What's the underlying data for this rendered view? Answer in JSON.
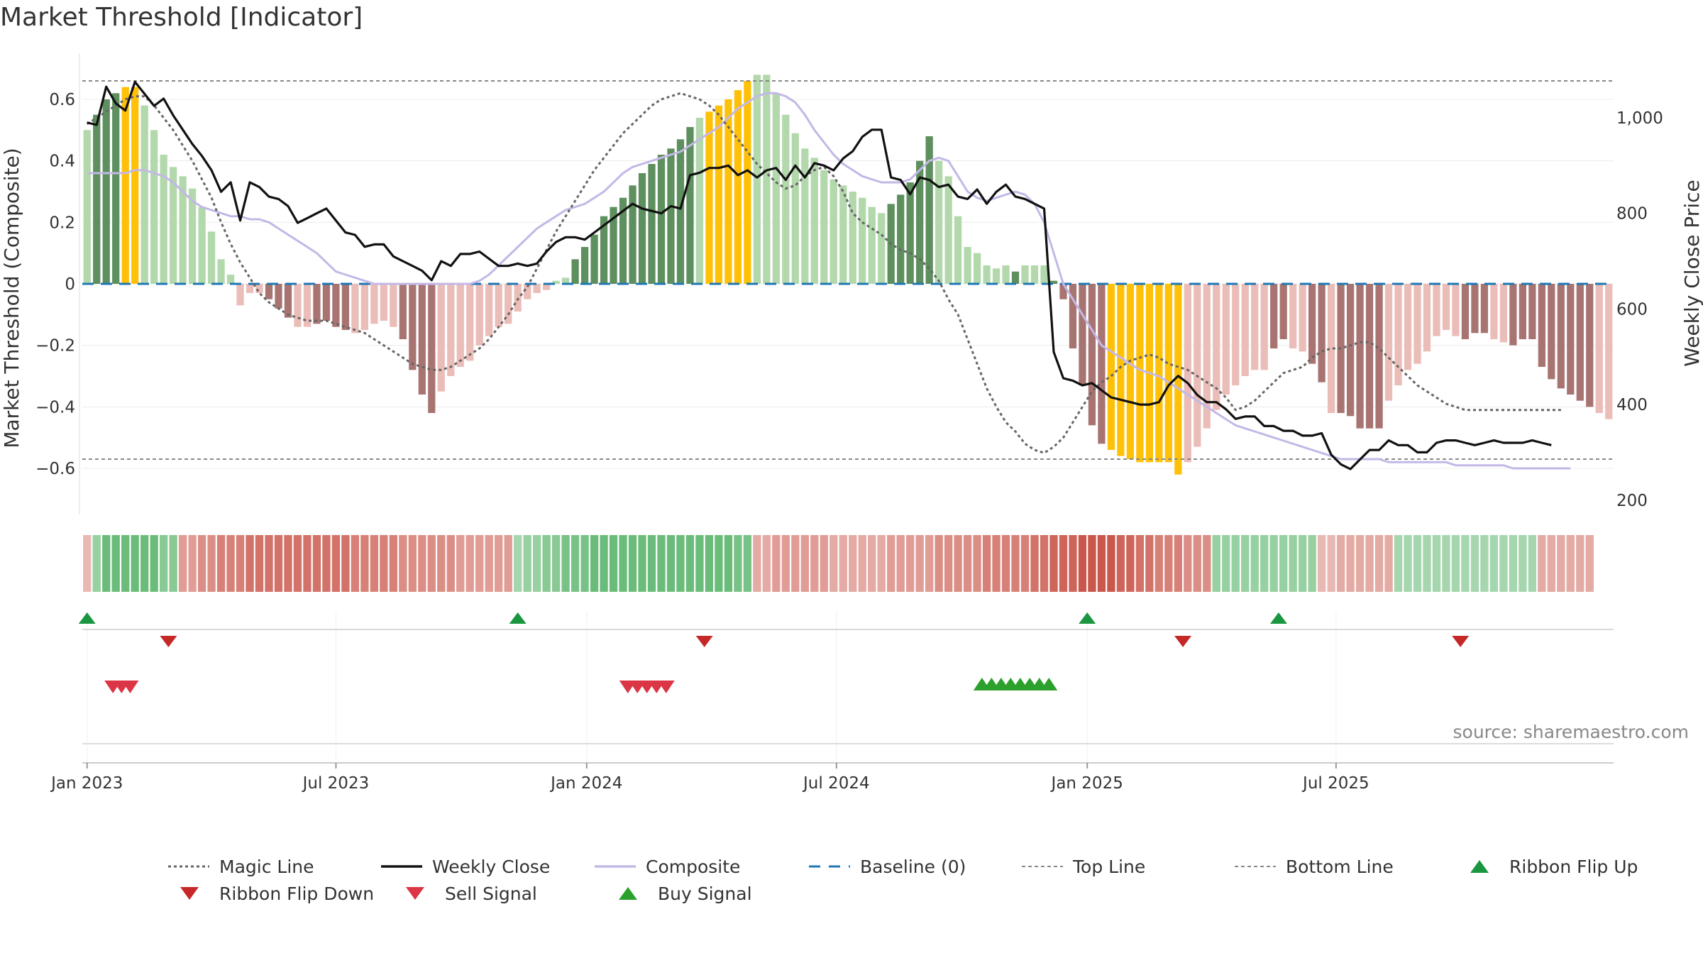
{
  "page": {
    "title": "Market Threshold [Indicator]"
  },
  "source": "source: sharemaestro.com",
  "colors": {
    "bull_dark": "#5e8f5e",
    "bull_light": "#b2d8ac",
    "bear_dark": "#a87472",
    "bear_light": "#ebbdb8",
    "extreme": "#ffc107",
    "close": "#111111",
    "composite": "#c3b8e6",
    "magic": "#666666",
    "baseline": "#1f77b4",
    "ribbon_up": "#1a9641",
    "sell": "#dc3545",
    "buy": "#2ca02c"
  },
  "chart_data": {
    "type": "bar",
    "title": "Market Threshold [Indicator]",
    "start_week": "2022-12-26",
    "left_axis": {
      "label": "Market Threshold (Composite)",
      "ylim": [
        -0.75,
        0.75
      ],
      "ticks": [
        0.6,
        0.4,
        0.2,
        0,
        -0.2,
        -0.4,
        -0.6
      ],
      "tick_labels": [
        "0.6",
        "0.4",
        "0.2",
        "0",
        "−0.2",
        "−0.4",
        "−0.6"
      ]
    },
    "right_axis": {
      "label": "Weekly Close Price",
      "ylim": [
        170,
        1135
      ],
      "ticks": [
        1000,
        800,
        600,
        400,
        200
      ],
      "tick_labels": [
        "1,000",
        "800",
        "600",
        "400",
        "200"
      ]
    },
    "x_ticks": [
      {
        "label": "Jan 2023",
        "week": 0.5
      },
      {
        "label": "Jul 2023",
        "week": 26.5
      },
      {
        "label": "Jan 2024",
        "week": 52.7
      },
      {
        "label": "Jul 2024",
        "week": 78.8
      },
      {
        "label": "Jan 2025",
        "week": 105
      },
      {
        "label": "Jul 2025",
        "week": 131
      }
    ],
    "top_line": 0.66,
    "bottom_line": -0.57,
    "baseline": 0,
    "histogram": [
      0.5,
      0.55,
      0.6,
      0.62,
      0.64,
      0.64,
      0.58,
      0.5,
      0.42,
      0.38,
      0.35,
      0.31,
      0.25,
      0.17,
      0.08,
      0.03,
      -0.07,
      -0.03,
      -0.03,
      -0.05,
      -0.08,
      -0.11,
      -0.14,
      -0.14,
      -0.13,
      -0.12,
      -0.14,
      -0.15,
      -0.16,
      -0.15,
      -0.13,
      -0.12,
      -0.14,
      -0.18,
      -0.28,
      -0.36,
      -0.42,
      -0.35,
      -0.3,
      -0.27,
      -0.25,
      -0.2,
      -0.17,
      -0.14,
      -0.13,
      -0.09,
      -0.05,
      -0.03,
      -0.02,
      0.01,
      0.02,
      0.08,
      0.12,
      0.16,
      0.22,
      0.25,
      0.28,
      0.32,
      0.36,
      0.39,
      0.42,
      0.44,
      0.47,
      0.51,
      0.54,
      0.56,
      0.58,
      0.6,
      0.63,
      0.66,
      0.68,
      0.68,
      0.62,
      0.55,
      0.49,
      0.44,
      0.41,
      0.37,
      0.34,
      0.32,
      0.3,
      0.28,
      0.25,
      0.23,
      0.26,
      0.29,
      0.33,
      0.4,
      0.48,
      0.4,
      0.35,
      0.22,
      0.12,
      0.1,
      0.06,
      0.05,
      0.06,
      0.04,
      0.06,
      0.06,
      0.06,
      0.01,
      -0.05,
      -0.21,
      -0.33,
      -0.46,
      -0.52,
      -0.54,
      -0.56,
      -0.57,
      -0.58,
      -0.58,
      -0.58,
      -0.58,
      -0.62,
      -0.58,
      -0.53,
      -0.47,
      -0.41,
      -0.36,
      -0.33,
      -0.3,
      -0.28,
      -0.28,
      -0.21,
      -0.18,
      -0.21,
      -0.22,
      -0.26,
      -0.32,
      -0.42,
      -0.42,
      -0.43,
      -0.47,
      -0.47,
      -0.47,
      -0.38,
      -0.33,
      -0.28,
      -0.26,
      -0.22,
      -0.17,
      -0.15,
      -0.17,
      -0.18,
      -0.16,
      -0.16,
      -0.18,
      -0.19,
      -0.2,
      -0.18,
      -0.18,
      -0.27,
      -0.31,
      -0.34,
      -0.36,
      -0.38,
      -0.4,
      -0.42,
      -0.44
    ],
    "histogram_style": [
      "L",
      "D",
      "D",
      "D",
      "Y",
      "Y",
      "L",
      "L",
      "L",
      "L",
      "L",
      "L",
      "L",
      "L",
      "L",
      "L",
      "L",
      "L",
      "L",
      "D",
      "D",
      "D",
      "L",
      "L",
      "D",
      "D",
      "D",
      "D",
      "L",
      "L",
      "L",
      "L",
      "L",
      "D",
      "D",
      "D",
      "D",
      "L",
      "L",
      "L",
      "L",
      "L",
      "L",
      "L",
      "L",
      "L",
      "L",
      "L",
      "L",
      "L",
      "L",
      "D",
      "D",
      "D",
      "D",
      "D",
      "D",
      "D",
      "D",
      "D",
      "D",
      "D",
      "D",
      "D",
      "L",
      "Y",
      "Y",
      "Y",
      "Y",
      "Y",
      "L",
      "L",
      "L",
      "L",
      "L",
      "L",
      "L",
      "L",
      "L",
      "L",
      "L",
      "L",
      "L",
      "L",
      "D",
      "D",
      "D",
      "D",
      "D",
      "L",
      "L",
      "L",
      "L",
      "L",
      "L",
      "L",
      "L",
      "D",
      "L",
      "L",
      "L",
      "D",
      "D",
      "D",
      "D",
      "D",
      "D",
      "Y",
      "Y",
      "Y",
      "Y",
      "Y",
      "Y",
      "Y",
      "Y",
      "L",
      "L",
      "L",
      "L",
      "L",
      "L",
      "L",
      "L",
      "L",
      "D",
      "D",
      "L",
      "L",
      "D",
      "D",
      "L",
      "D",
      "D",
      "D",
      "D",
      "D",
      "L",
      "L",
      "L",
      "L",
      "L",
      "L",
      "L",
      "L",
      "D",
      "D",
      "D",
      "L",
      "L",
      "D",
      "D",
      "D",
      "D",
      "D",
      "D",
      "D",
      "D",
      "D"
    ],
    "series": [
      {
        "name": "Weekly Close",
        "axis": "right",
        "values": [
          990,
          985,
          1065,
          1030,
          1015,
          1075,
          1050,
          1025,
          1040,
          1005,
          975,
          945,
          920,
          890,
          845,
          865,
          785,
          865,
          855,
          835,
          830,
          815,
          780,
          790,
          800,
          810,
          785,
          760,
          755,
          730,
          735,
          735,
          710,
          700,
          690,
          680,
          660,
          700,
          690,
          715,
          715,
          720,
          705,
          690,
          690,
          695,
          690,
          695,
          720,
          740,
          750,
          750,
          745,
          760,
          775,
          790,
          805,
          820,
          810,
          805,
          800,
          815,
          810,
          880,
          885,
          895,
          895,
          900,
          880,
          890,
          875,
          890,
          895,
          870,
          900,
          875,
          905,
          900,
          890,
          915,
          930,
          960,
          975,
          975,
          875,
          870,
          840,
          875,
          870,
          855,
          860,
          835,
          830,
          850,
          820,
          845,
          860,
          835,
          830,
          820,
          810,
          510,
          455,
          450,
          440,
          445,
          430,
          415,
          410,
          405,
          400,
          400,
          405,
          440,
          460,
          445,
          420,
          405,
          405,
          390,
          370,
          375,
          375,
          355,
          355,
          345,
          345,
          335,
          335,
          340,
          295,
          275,
          265,
          285,
          305,
          305,
          325,
          315,
          315,
          300,
          300,
          320,
          325,
          325,
          320,
          315,
          320,
          325,
          320,
          320,
          320,
          325,
          320,
          315
        ],
        "style": "solid",
        "color": "#111111"
      },
      {
        "name": "Composite",
        "axis": "left",
        "values": [
          0.36,
          0.36,
          0.36,
          0.36,
          0.36,
          0.37,
          0.37,
          0.36,
          0.35,
          0.33,
          0.3,
          0.27,
          0.25,
          0.24,
          0.23,
          0.22,
          0.22,
          0.21,
          0.21,
          0.2,
          0.18,
          0.16,
          0.14,
          0.12,
          0.1,
          0.07,
          0.04,
          0.03,
          0.02,
          0.01,
          0,
          0,
          0,
          0,
          0,
          0,
          0,
          0,
          0,
          0,
          0,
          0.01,
          0.03,
          0.06,
          0.09,
          0.12,
          0.15,
          0.18,
          0.2,
          0.22,
          0.24,
          0.25,
          0.26,
          0.28,
          0.3,
          0.33,
          0.36,
          0.38,
          0.39,
          0.4,
          0.41,
          0.42,
          0.43,
          0.45,
          0.47,
          0.49,
          0.51,
          0.54,
          0.57,
          0.59,
          0.61,
          0.62,
          0.62,
          0.61,
          0.59,
          0.55,
          0.5,
          0.46,
          0.42,
          0.39,
          0.37,
          0.35,
          0.34,
          0.33,
          0.33,
          0.33,
          0.34,
          0.37,
          0.4,
          0.41,
          0.4,
          0.35,
          0.3,
          0.28,
          0.27,
          0.28,
          0.29,
          0.3,
          0.29,
          0.26,
          0.2,
          0.1,
          0,
          -0.05,
          -0.1,
          -0.15,
          -0.2,
          -0.22,
          -0.24,
          -0.26,
          -0.28,
          -0.29,
          -0.3,
          -0.32,
          -0.34,
          -0.36,
          -0.38,
          -0.4,
          -0.42,
          -0.44,
          -0.46,
          -0.47,
          -0.48,
          -0.49,
          -0.5,
          -0.51,
          -0.52,
          -0.53,
          -0.54,
          -0.55,
          -0.56,
          -0.57,
          -0.57,
          -0.57,
          -0.57,
          -0.57,
          -0.58,
          -0.58,
          -0.58,
          -0.58,
          -0.58,
          -0.58,
          -0.58,
          -0.59,
          -0.59,
          -0.59,
          -0.59,
          -0.59,
          -0.59,
          -0.6,
          -0.6,
          -0.6,
          -0.6,
          -0.6,
          -0.6,
          -0.6
        ],
        "style": "solid",
        "color": "#c3b8e6"
      },
      {
        "name": "Magic Line",
        "axis": "left",
        "values": [
          0.52,
          0.54,
          0.56,
          0.58,
          0.6,
          0.61,
          0.61,
          0.58,
          0.54,
          0.5,
          0.45,
          0.4,
          0.34,
          0.28,
          0.2,
          0.13,
          0.07,
          0.02,
          -0.03,
          -0.06,
          -0.08,
          -0.1,
          -0.11,
          -0.12,
          -0.12,
          -0.12,
          -0.13,
          -0.14,
          -0.15,
          -0.16,
          -0.18,
          -0.2,
          -0.22,
          -0.24,
          -0.26,
          -0.27,
          -0.28,
          -0.28,
          -0.27,
          -0.25,
          -0.23,
          -0.21,
          -0.18,
          -0.14,
          -0.1,
          -0.05,
          -0.01,
          0.05,
          0.11,
          0.17,
          0.22,
          0.27,
          0.32,
          0.37,
          0.41,
          0.45,
          0.49,
          0.52,
          0.55,
          0.58,
          0.6,
          0.61,
          0.62,
          0.61,
          0.6,
          0.58,
          0.55,
          0.51,
          0.47,
          0.43,
          0.39,
          0.36,
          0.33,
          0.31,
          0.32,
          0.35,
          0.37,
          0.38,
          0.35,
          0.3,
          0.23,
          0.2,
          0.18,
          0.16,
          0.13,
          0.11,
          0.1,
          0.08,
          0.05,
          0.01,
          -0.05,
          -0.1,
          -0.18,
          -0.26,
          -0.34,
          -0.4,
          -0.45,
          -0.48,
          -0.52,
          -0.54,
          -0.55,
          -0.53,
          -0.5,
          -0.45,
          -0.4,
          -0.35,
          -0.32,
          -0.3,
          -0.27,
          -0.25,
          -0.24,
          -0.23,
          -0.24,
          -0.26,
          -0.27,
          -0.28,
          -0.3,
          -0.32,
          -0.34,
          -0.37,
          -0.41,
          -0.4,
          -0.38,
          -0.35,
          -0.32,
          -0.29,
          -0.28,
          -0.27,
          -0.24,
          -0.22,
          -0.21,
          -0.21,
          -0.2,
          -0.19,
          -0.19,
          -0.21,
          -0.24,
          -0.27,
          -0.3,
          -0.33,
          -0.35,
          -0.37,
          -0.39,
          -0.4,
          -0.41,
          -0.41,
          -0.41,
          -0.41,
          -0.41,
          -0.41,
          -0.41,
          -0.41,
          -0.41,
          -0.41,
          -0.41
        ],
        "style": "dotted",
        "color": "#666666"
      }
    ],
    "ribbon": [
      -0.3,
      0.5,
      0.8,
      0.8,
      0.8,
      0.8,
      0.8,
      0.8,
      0.6,
      0.6,
      -0.5,
      -0.5,
      -0.6,
      -0.6,
      -0.7,
      -0.7,
      -0.7,
      -0.8,
      -0.8,
      -0.8,
      -0.8,
      -0.8,
      -0.8,
      -0.8,
      -0.8,
      -0.8,
      -0.8,
      -0.8,
      -0.7,
      -0.7,
      -0.7,
      -0.7,
      -0.7,
      -0.6,
      -0.6,
      -0.6,
      -0.6,
      -0.6,
      -0.6,
      -0.5,
      -0.5,
      -0.5,
      -0.5,
      -0.5,
      -0.5,
      0.4,
      0.5,
      0.5,
      0.6,
      0.6,
      0.7,
      0.7,
      0.7,
      0.8,
      0.8,
      0.8,
      0.8,
      0.8,
      0.8,
      0.8,
      0.8,
      0.8,
      0.8,
      0.8,
      0.8,
      0.8,
      0.8,
      0.8,
      0.7,
      0.7,
      -0.4,
      -0.4,
      -0.5,
      -0.5,
      -0.5,
      -0.5,
      -0.5,
      -0.5,
      -0.4,
      -0.4,
      -0.4,
      -0.4,
      -0.4,
      -0.4,
      -0.5,
      -0.5,
      -0.5,
      -0.5,
      -0.5,
      -0.6,
      -0.6,
      -0.6,
      -0.6,
      -0.6,
      -0.7,
      -0.7,
      -0.7,
      -0.7,
      -0.7,
      -0.8,
      -0.8,
      -0.9,
      -0.9,
      -0.9,
      -1,
      -1,
      -1,
      -1,
      -0.9,
      -0.9,
      -0.8,
      -0.8,
      -0.7,
      -0.7,
      -0.7,
      -0.6,
      -0.6,
      -0.6,
      0.5,
      0.5,
      0.5,
      0.5,
      0.5,
      0.5,
      0.5,
      0.5,
      0.5,
      0.5,
      0.5,
      -0.3,
      -0.3,
      -0.4,
      -0.4,
      -0.4,
      -0.4,
      -0.4,
      -0.4,
      0.4,
      0.4,
      0.4,
      0.4,
      0.4,
      0.4,
      0.4,
      0.4,
      0.4,
      0.4,
      0.4,
      0.4,
      0.4,
      0.4,
      0.4,
      -0.4,
      -0.4,
      -0.4,
      -0.4,
      -0.4,
      -0.4
    ],
    "ribbon_flip_up_weeks": [
      0.5,
      45.5,
      105,
      125
    ],
    "ribbon_flip_down_weeks": [
      9,
      65,
      115,
      144
    ],
    "sell_signal_weeks": [
      3.2,
      4.1,
      5,
      57,
      58,
      59,
      60,
      61
    ],
    "buy_signal_weeks": [
      94,
      95,
      96,
      97,
      98,
      99,
      100,
      101
    ]
  },
  "legend": [
    {
      "label": "Magic Line",
      "kind": "dotted",
      "color": "#666666"
    },
    {
      "label": "Weekly Close",
      "kind": "solid",
      "color": "#111111"
    },
    {
      "label": "Composite",
      "kind": "solid",
      "color": "#c3b8e6"
    },
    {
      "label": "Baseline (0)",
      "kind": "dashed",
      "color": "#1f77b4"
    },
    {
      "label": "Top Line",
      "kind": "dashed-thin",
      "color": "#888888"
    },
    {
      "label": "Bottom Line",
      "kind": "dashed-thin",
      "color": "#888888"
    },
    {
      "label": "Ribbon Flip Up",
      "kind": "tri-up",
      "color": "#1a9641"
    },
    {
      "label": "Ribbon Flip Down",
      "kind": "tri-down",
      "color": "#c62828"
    },
    {
      "label": "Sell Signal",
      "kind": "tri-down",
      "color": "#dc3545"
    },
    {
      "label": "Buy Signal",
      "kind": "tri-up",
      "color": "#2ca02c"
    }
  ]
}
